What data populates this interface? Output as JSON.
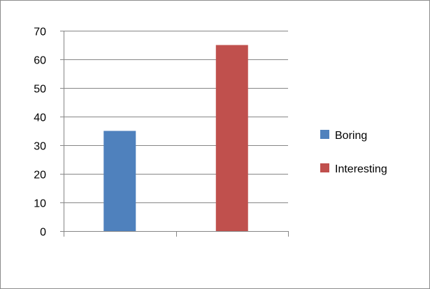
{
  "chart_data": {
    "type": "bar",
    "title": "",
    "xlabel": "",
    "ylabel": "",
    "categories": [
      "",
      ""
    ],
    "ylim": [
      0,
      70
    ],
    "yticks": [
      0,
      10,
      20,
      30,
      40,
      50,
      60,
      70
    ],
    "grid": true,
    "legend_position": "right",
    "series": [
      {
        "name": "Boring",
        "color": "#4f81bd",
        "values": [
          35,
          null
        ]
      },
      {
        "name": "Interesting",
        "color": "#c0504d",
        "values": [
          null,
          65
        ]
      }
    ]
  }
}
